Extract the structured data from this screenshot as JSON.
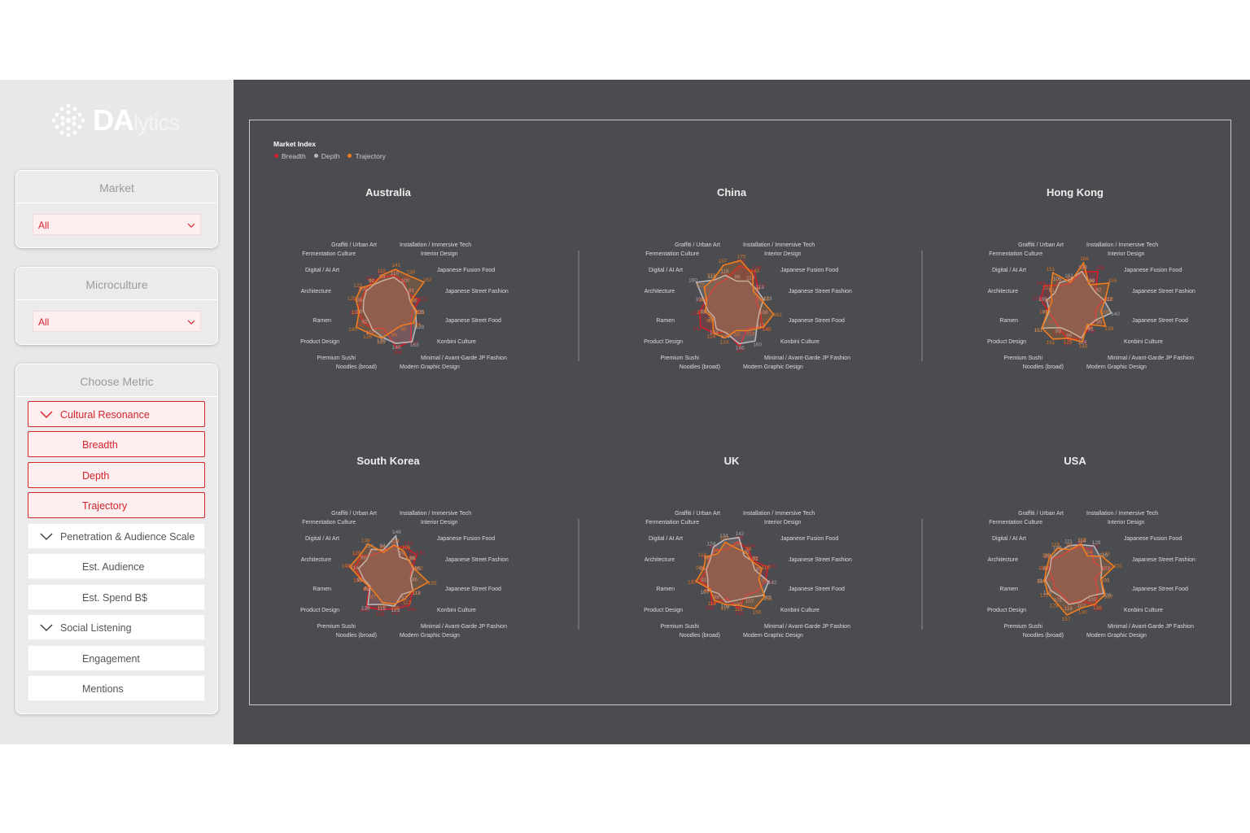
{
  "logo": {
    "brand": "DA",
    "suffix": "lytics"
  },
  "filters": [
    {
      "title": "Market",
      "value": "All"
    },
    {
      "title": "Microculture",
      "value": "All"
    }
  ],
  "metric_panel": {
    "title": "Choose Metric",
    "items": [
      {
        "label": "Cultural Resonance",
        "kind": "group",
        "selected": true
      },
      {
        "label": "Breadth",
        "kind": "child",
        "selected": true
      },
      {
        "label": "Depth",
        "kind": "child",
        "selected": true
      },
      {
        "label": "Trajectory",
        "kind": "child",
        "selected": true
      },
      {
        "label": "Penetration & Audience Scale",
        "kind": "group",
        "selected": false
      },
      {
        "label": "Est. Audience",
        "kind": "child",
        "selected": false
      },
      {
        "label": "Est. Spend B$",
        "kind": "child",
        "selected": false
      },
      {
        "label": "Social Listening",
        "kind": "group",
        "selected": false
      },
      {
        "label": "Engagement",
        "kind": "child",
        "selected": false
      },
      {
        "label": "Mentions",
        "kind": "child",
        "selected": false
      }
    ]
  },
  "colors": {
    "breadth": "#d11f2b",
    "depth": "#b9b9bd",
    "trajectory": "#ef7d1f",
    "accent": "#d6242c"
  },
  "chart_data": {
    "type": "radar",
    "legend_title": "Market Index",
    "series_names": [
      "Breadth",
      "Depth",
      "Trajectory"
    ],
    "axes": [
      "Installation / Immersive Tech",
      "Interior Design",
      "Japanese Fusion Food",
      "Japanese Street Fashion",
      "Japanese Street Food",
      "Konbini Culture",
      "Minimal / Avant-Garde JP Fashion",
      "Modern Graphic Design",
      "Noodles (broad)",
      "Premium Sushi",
      "Product Design",
      "Ramen",
      "Architecture",
      "Digital / AI Art",
      "Fermentation Culture",
      "Graffiti / Urban Art"
    ],
    "markets": [
      {
        "name": "Australia",
        "breadth": [
          118,
          110,
          86,
          121,
          96,
          104,
          157,
          164,
          86,
          105,
          112,
          117,
          106,
          104,
          111,
          112
        ],
        "depth": [
          110,
          100,
          91,
          85,
          106,
          128,
          163,
          145,
          120,
          107,
          92,
          96,
          95,
          100,
          97,
          98
        ],
        "trajectory": [
          141,
          138,
          162,
          86,
          111,
          116,
          90,
          96,
          125,
          126,
          145,
          112,
          125,
          123,
          99,
          119
        ]
      },
      {
        "name": "China",
        "breadth": [
          155,
          156,
          120,
          95,
          110,
          141,
          104,
          157,
          101,
          124,
          141,
          124,
          101,
          92,
          99,
          104
        ],
        "depth": [
          96,
          113,
          113,
          123,
          108,
          117,
          160,
          146,
          104,
          104,
          79,
          92,
          107,
          160,
          118,
          118
        ],
        "trajectory": [
          175,
          143,
          99,
          115,
          162,
          145,
          113,
          95,
          124,
          124,
          86,
          102,
          96,
          125,
          123,
          157
        ]
      },
      {
        "name": "Hong Kong",
        "breadth": [
          132,
          156,
          93,
          109,
          79,
          96,
          99,
          125,
          131,
          106,
          94,
          105,
          132,
          140,
          94,
          88
        ],
        "depth": [
          133,
          99,
          92,
          112,
          140,
          95,
          91,
          124,
          99,
          99,
          151,
          99,
          109,
          91,
          106,
          101
        ],
        "trajectory": [
          166,
          96,
          155,
          116,
          100,
          139,
          84,
          140,
          125,
          151,
          151,
          105,
          89,
          110,
          151,
          91
        ]
      },
      {
        "name": "South Korea",
        "breadth": [
          109,
          123,
          130,
          89,
          86,
          113,
          143,
          132,
          138,
          148,
          87,
          101,
          131,
          123,
          91,
          92
        ],
        "depth": [
          148,
          79,
          96,
          98,
          86,
          113,
          92,
          123,
          116,
          138,
          82,
          94,
          114,
          98,
          114,
          94
        ],
        "trajectory": [
          114,
          106,
          93,
          102,
          155,
          111,
          113,
          115,
          109,
          87,
          85,
          103,
          148,
          129,
          138,
          85
        ]
      },
      {
        "name": "UK",
        "breadth": [
          126,
          114,
          96,
          140,
          131,
          117,
          97,
          133,
          93,
          136,
          96,
          123,
          94,
          104,
          110,
          96
        ],
        "depth": [
          142,
          85,
          92,
          89,
          142,
          143,
          107,
          100,
          108,
          88,
          107,
          92,
          98,
          98,
          124,
          134
        ],
        "trajectory": [
          100,
          99,
          91,
          116,
          105,
          151,
          156,
          119,
          117,
          118,
          99,
          137,
          108,
          118,
          94,
          124
        ]
      },
      {
        "name": "USA",
        "breadth": [
          107,
          113,
          85,
          112,
          78,
          103,
          143,
          100,
          114,
          91,
          93,
          86,
          102,
          105,
          87,
          95
        ],
        "depth": [
          114,
          129,
          115,
          103,
          100,
          129,
          100,
          107,
          116,
          101,
          110,
          114,
          97,
          108,
          105,
          111
        ],
        "trajectory": [
          118,
          84,
          123,
          151,
          100,
          137,
          136,
          130,
          157,
          128,
          125,
          118,
          110,
          116,
          119,
          95
        ]
      }
    ],
    "max": 200
  }
}
